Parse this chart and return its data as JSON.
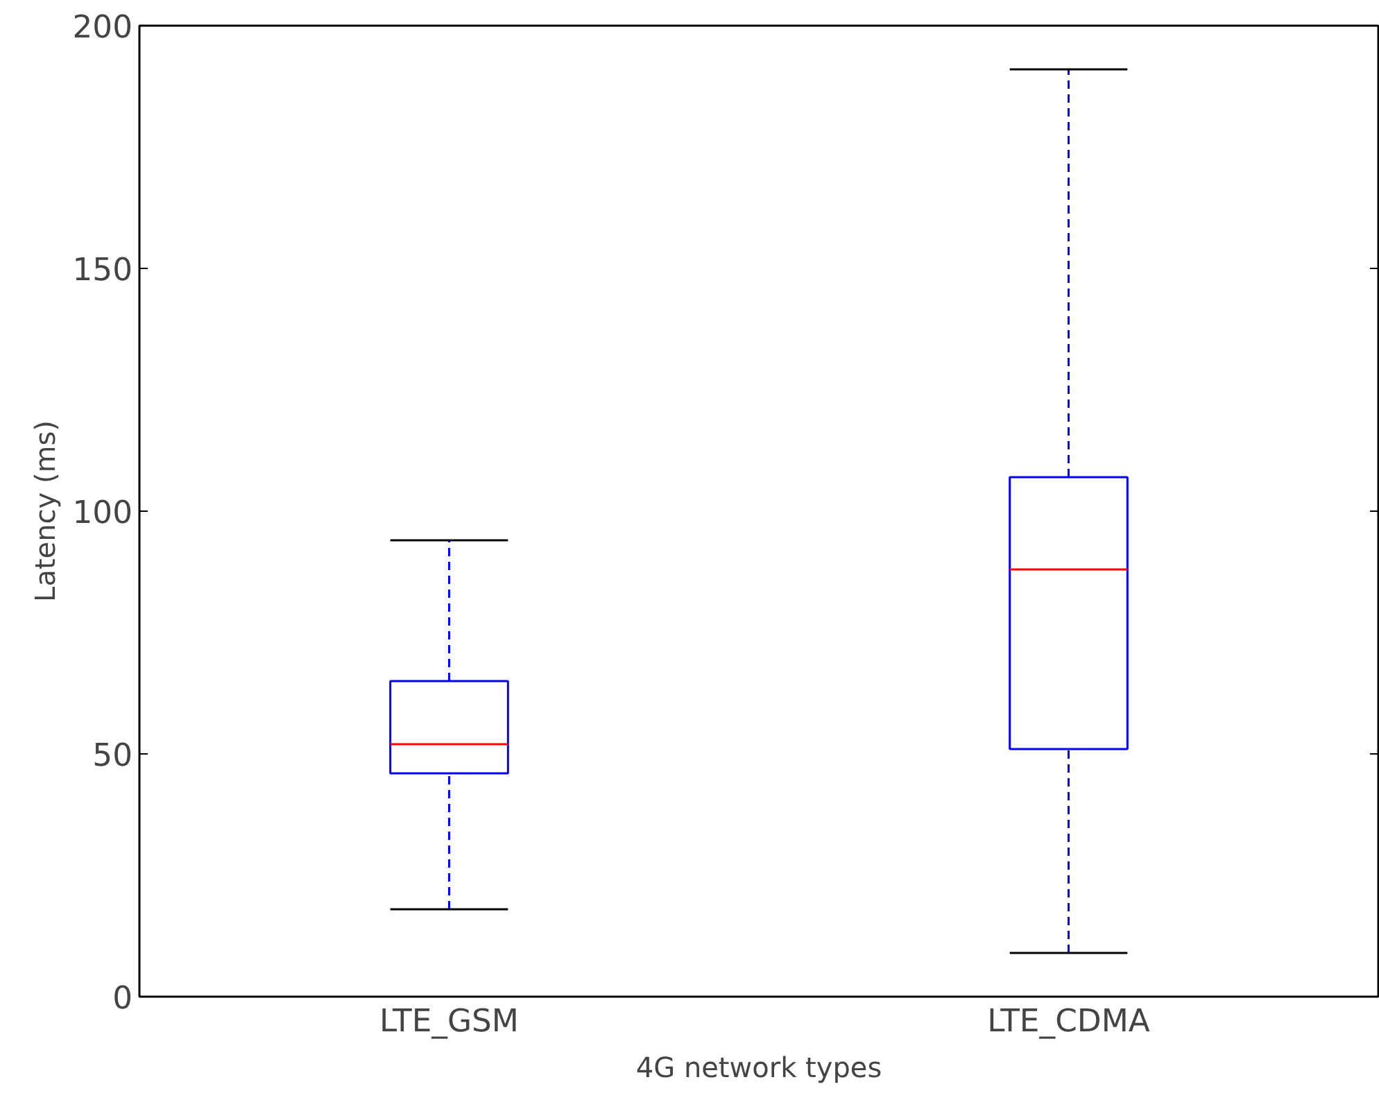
{
  "chart_data": {
    "type": "box",
    "xlabel": "4G network types",
    "ylabel": "Latency (ms)",
    "categories": [
      "LTE_GSM",
      "LTE_CDMA"
    ],
    "boxes": [
      {
        "low": 18,
        "q1": 46,
        "median": 52,
        "q3": 65,
        "high": 94
      },
      {
        "low": 9,
        "q1": 51,
        "median": 88,
        "q3": 107,
        "high": 191
      }
    ],
    "ylim": [
      0,
      200
    ],
    "yticks": [
      0,
      50,
      100,
      150,
      200
    ],
    "grid": false
  }
}
